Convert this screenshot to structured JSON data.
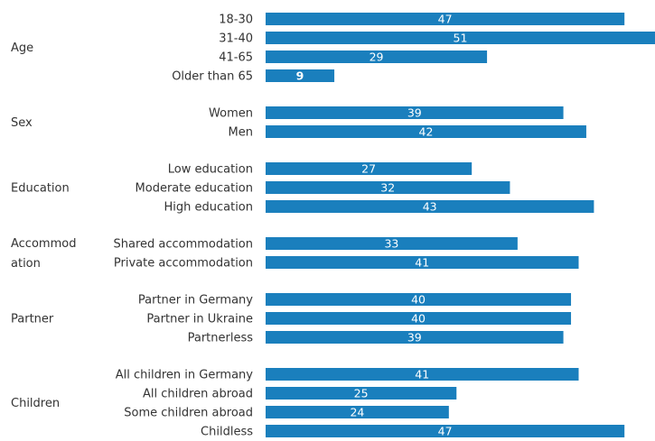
{
  "chart_data": {
    "type": "bar",
    "orientation": "horizontal",
    "bar_color": "#1a7fbd",
    "value_label_color": "#ffffff",
    "xlim": [
      0,
      51
    ],
    "grid": false,
    "groups": [
      {
        "label": "Age",
        "items": [
          {
            "label": "18-30",
            "value": 47
          },
          {
            "label": "31-40",
            "value": 51
          },
          {
            "label": "41-65",
            "value": 29
          },
          {
            "label": "Older than 65",
            "value": 9
          }
        ]
      },
      {
        "label": "Sex",
        "items": [
          {
            "label": "Women",
            "value": 39
          },
          {
            "label": "Men",
            "value": 42
          }
        ]
      },
      {
        "label": "Education",
        "items": [
          {
            "label": "Low education",
            "value": 27
          },
          {
            "label": "Moderate education",
            "value": 32
          },
          {
            "label": "High education",
            "value": 43
          }
        ]
      },
      {
        "label": "Accommodation",
        "label_lines": [
          "Accommod",
          "ation"
        ],
        "items": [
          {
            "label": "Shared accommodation",
            "value": 33
          },
          {
            "label": "Private accommodation",
            "value": 41
          }
        ]
      },
      {
        "label": "Partner",
        "items": [
          {
            "label": "Partner in Germany",
            "value": 40
          },
          {
            "label": "Partner in Ukraine",
            "value": 40
          },
          {
            "label": "Partnerless",
            "value": 39
          }
        ]
      },
      {
        "label": "Children",
        "items": [
          {
            "label": "All children in Germany",
            "value": 41
          },
          {
            "label": "All children abroad",
            "value": 25
          },
          {
            "label": "Some children abroad",
            "value": 24
          },
          {
            "label": "Childless",
            "value": 47
          }
        ]
      }
    ]
  }
}
